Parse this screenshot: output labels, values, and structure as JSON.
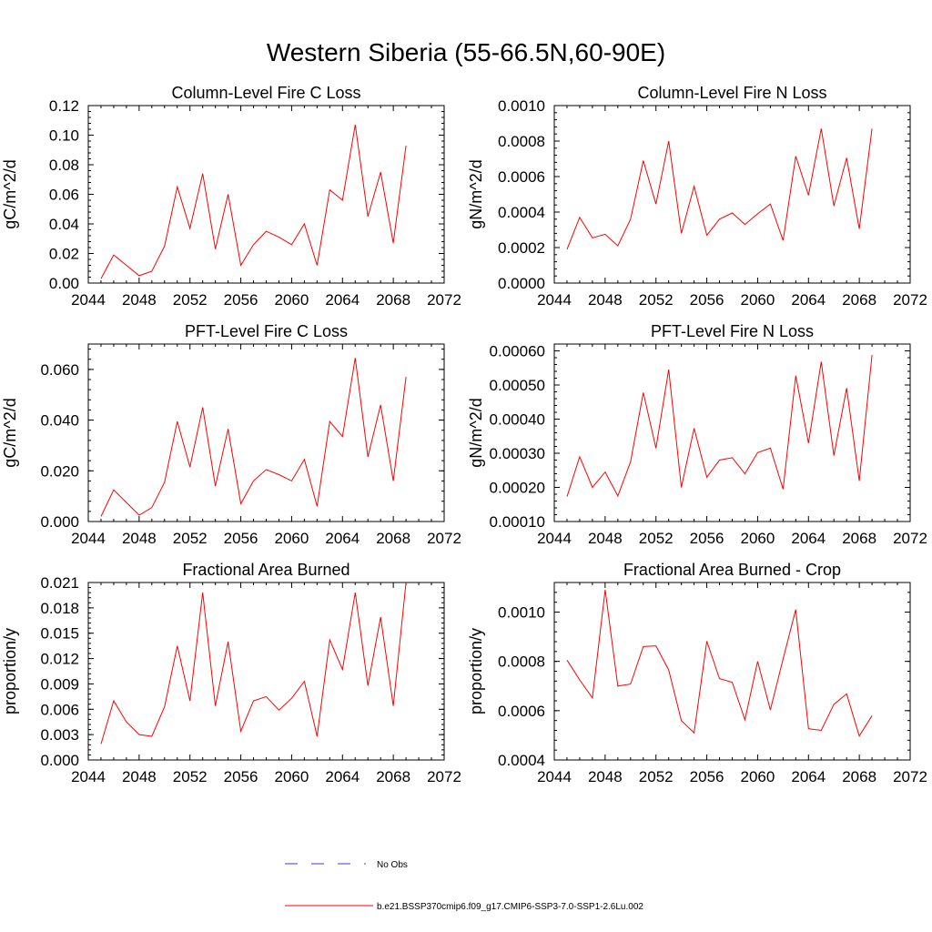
{
  "figure": {
    "title": "Western Siberia (55-66.5N,60-90E)",
    "legend": [
      {
        "label": "No Obs",
        "color": "#3b3bd6",
        "dash": true
      },
      {
        "label": "b.e21.BSSP370cmip6.f09_g17.CMIP6-SSP3-7.0-SSP1-2.6Lu.002",
        "color": "#ff0000",
        "dash": false
      }
    ]
  },
  "chart_data": [
    {
      "type": "line",
      "title": "Column-Level Fire C Loss",
      "ylabel": "gC/m^2/d",
      "xlim": [
        2044,
        2072
      ],
      "xticks": [
        "2044",
        "2048",
        "2052",
        "2056",
        "2060",
        "2064",
        "2068",
        "2072"
      ],
      "ylim": [
        0,
        0.12
      ],
      "yticks": [
        "0.00",
        "0.02",
        "0.04",
        "0.06",
        "0.08",
        "0.10",
        "0.12"
      ],
      "x": [
        2045,
        2046,
        2047,
        2048,
        2049,
        2050,
        2051,
        2052,
        2053,
        2054,
        2055,
        2056,
        2057,
        2058,
        2059,
        2060,
        2061,
        2062,
        2063,
        2064,
        2065,
        2066,
        2067,
        2068,
        2069
      ],
      "series": [
        {
          "color": "#ff0000",
          "values": [
            0.003,
            0.019,
            0.012,
            0.005,
            0.008,
            0.025,
            0.065,
            0.037,
            0.074,
            0.023,
            0.06,
            0.012,
            0.026,
            0.035,
            0.031,
            0.026,
            0.04,
            0.012,
            0.063,
            0.056,
            0.107,
            0.045,
            0.075,
            0.027,
            0.093
          ]
        }
      ]
    },
    {
      "type": "line",
      "title": "Column-Level Fire N Loss",
      "ylabel": "gN/m^2/d",
      "xlim": [
        2044,
        2072
      ],
      "xticks": [
        "2044",
        "2048",
        "2052",
        "2056",
        "2060",
        "2064",
        "2068",
        "2072"
      ],
      "ylim": [
        0,
        0.001
      ],
      "yticks": [
        "0.0000",
        "0.0002",
        "0.0004",
        "0.0006",
        "0.0008",
        "0.0010"
      ],
      "x": [
        2045,
        2046,
        2047,
        2048,
        2049,
        2050,
        2051,
        2052,
        2053,
        2054,
        2055,
        2056,
        2057,
        2058,
        2059,
        2060,
        2061,
        2062,
        2063,
        2064,
        2065,
        2066,
        2067,
        2068,
        2069
      ],
      "series": [
        {
          "color": "#ff0000",
          "values": [
            0.00019,
            0.00037,
            0.000255,
            0.000275,
            0.00021,
            0.00036,
            0.00069,
            0.000445,
            0.0008,
            0.00028,
            0.000545,
            0.00027,
            0.00036,
            0.000395,
            0.00033,
            0.00039,
            0.000445,
            0.00024,
            0.000715,
            0.000495,
            0.00087,
            0.000435,
            0.000705,
            0.000305,
            0.00087
          ]
        }
      ]
    },
    {
      "type": "line",
      "title": "PFT-Level Fire C Loss",
      "ylabel": "gC/m^2/d",
      "xlim": [
        2044,
        2072
      ],
      "xticks": [
        "2044",
        "2048",
        "2052",
        "2056",
        "2060",
        "2064",
        "2068",
        "2072"
      ],
      "ylim": [
        0,
        0.07
      ],
      "yticks": [
        "0.000",
        "0.020",
        "0.040",
        "0.060"
      ],
      "x": [
        2045,
        2046,
        2047,
        2048,
        2049,
        2050,
        2051,
        2052,
        2053,
        2054,
        2055,
        2056,
        2057,
        2058,
        2059,
        2060,
        2061,
        2062,
        2063,
        2064,
        2065,
        2066,
        2067,
        2068,
        2069
      ],
      "series": [
        {
          "color": "#ff0000",
          "values": [
            0.002,
            0.0125,
            0.0075,
            0.0025,
            0.0055,
            0.0155,
            0.0395,
            0.0215,
            0.045,
            0.014,
            0.0365,
            0.007,
            0.016,
            0.0205,
            0.0185,
            0.016,
            0.0245,
            0.006,
            0.0395,
            0.0335,
            0.0645,
            0.0255,
            0.046,
            0.016,
            0.057
          ]
        }
      ]
    },
    {
      "type": "line",
      "title": "PFT-Level Fire N Loss",
      "ylabel": "gN/m^2/d",
      "xlim": [
        2044,
        2072
      ],
      "xticks": [
        "2044",
        "2048",
        "2052",
        "2056",
        "2060",
        "2064",
        "2068",
        "2072"
      ],
      "ylim": [
        0.0001,
        0.00062
      ],
      "yticks": [
        "0.00010",
        "0.00020",
        "0.00030",
        "0.00040",
        "0.00050",
        "0.00060"
      ],
      "x": [
        2045,
        2046,
        2047,
        2048,
        2049,
        2050,
        2051,
        2052,
        2053,
        2054,
        2055,
        2056,
        2057,
        2058,
        2059,
        2060,
        2061,
        2062,
        2063,
        2064,
        2065,
        2066,
        2067,
        2068,
        2069
      ],
      "series": [
        {
          "color": "#ff0000",
          "values": [
            0.000173,
            0.00029,
            0.0002,
            0.000245,
            0.000175,
            0.000275,
            0.000478,
            0.000315,
            0.000545,
            0.0002,
            0.000373,
            0.00023,
            0.00028,
            0.000287,
            0.00024,
            0.000302,
            0.000315,
            0.000195,
            0.000527,
            0.00033,
            0.000568,
            0.000293,
            0.000491,
            0.000219,
            0.000588
          ]
        }
      ]
    },
    {
      "type": "line",
      "title": "Fractional Area Burned",
      "ylabel": "proportion/y",
      "xlim": [
        2044,
        2072
      ],
      "xticks": [
        "2044",
        "2048",
        "2052",
        "2056",
        "2060",
        "2064",
        "2068",
        "2072"
      ],
      "ylim": [
        0,
        0.021
      ],
      "yticks": [
        "0.000",
        "0.003",
        "0.006",
        "0.009",
        "0.012",
        "0.015",
        "0.018",
        "0.021"
      ],
      "x": [
        2045,
        2046,
        2047,
        2048,
        2049,
        2050,
        2051,
        2052,
        2053,
        2054,
        2055,
        2056,
        2057,
        2058,
        2059,
        2060,
        2061,
        2062,
        2063,
        2064,
        2065,
        2066,
        2067,
        2068,
        2069
      ],
      "series": [
        {
          "color": "#ff0000",
          "values": [
            0.0019,
            0.007,
            0.0045,
            0.003,
            0.0028,
            0.0063,
            0.0135,
            0.007,
            0.0198,
            0.0064,
            0.014,
            0.0034,
            0.007,
            0.0075,
            0.0059,
            0.0073,
            0.0093,
            0.0028,
            0.0142,
            0.0107,
            0.0198,
            0.0088,
            0.0169,
            0.0064,
            0.021
          ]
        }
      ]
    },
    {
      "type": "line",
      "title": "Fractional Area Burned - Crop",
      "ylabel": "proportion/y",
      "xlim": [
        2044,
        2072
      ],
      "xticks": [
        "2044",
        "2048",
        "2052",
        "2056",
        "2060",
        "2064",
        "2068",
        "2072"
      ],
      "ylim": [
        0.0004,
        0.00112
      ],
      "yticks": [
        "0.0004",
        "0.0006",
        "0.0008",
        "0.0010"
      ],
      "x": [
        2045,
        2046,
        2047,
        2048,
        2049,
        2050,
        2051,
        2052,
        2053,
        2054,
        2055,
        2056,
        2057,
        2058,
        2059,
        2060,
        2061,
        2062,
        2063,
        2064,
        2065,
        2066,
        2067,
        2068,
        2069
      ],
      "series": [
        {
          "color": "#ff0000",
          "values": [
            0.000805,
            0.000725,
            0.000652,
            0.00109,
            0.0007,
            0.000708,
            0.00086,
            0.000863,
            0.000765,
            0.00056,
            0.00051,
            0.000882,
            0.00073,
            0.000715,
            0.000563,
            0.0008,
            0.000603,
            0.00081,
            0.00101,
            0.000527,
            0.00052,
            0.000626,
            0.000668,
            0.000497,
            0.00058
          ]
        }
      ]
    }
  ]
}
